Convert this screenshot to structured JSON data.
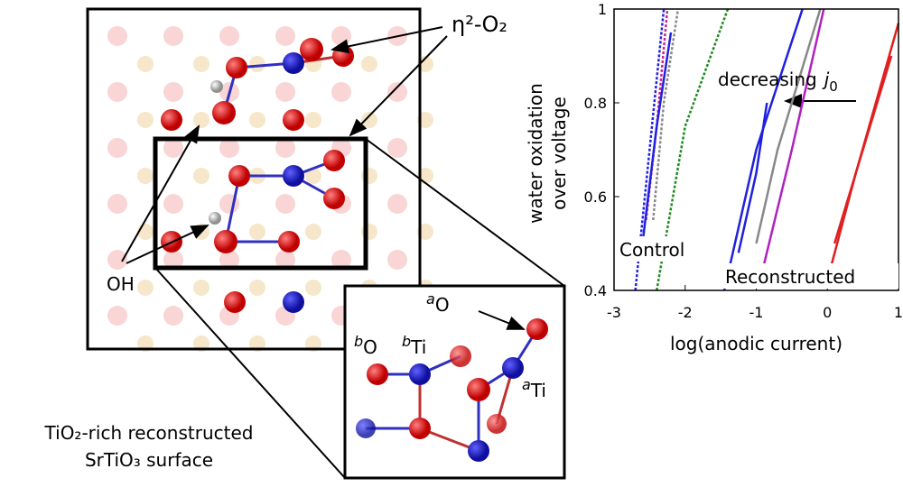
{
  "chart_data": {
    "type": "line",
    "xlabel": "log(anodic current)",
    "ylabel": [
      "water oxidation",
      "over voltage"
    ],
    "xlim": [
      -3,
      1
    ],
    "ylim": [
      0.4,
      1
    ],
    "xticks": [
      -3,
      -2,
      -1,
      0,
      1
    ],
    "yticks": [
      0.4,
      0.6,
      0.8,
      1
    ],
    "annotations": {
      "decreasing": {
        "text": "decreasing",
        "symbol": "j",
        "subscript": "0"
      },
      "control": "Control",
      "reconstructed": "Reconstructed"
    },
    "series": [
      {
        "color": "#2020e0",
        "dashed": true,
        "x": [
          -2.7,
          -2.5,
          -2.3
        ],
        "values": [
          0.4,
          0.7,
          1.0
        ]
      },
      {
        "color": "#d0208a",
        "dashed": true,
        "x": [
          -2.55,
          -2.4,
          -2.25
        ],
        "values": [
          0.55,
          0.75,
          1.0
        ]
      },
      {
        "color": "#888888",
        "dashed": true,
        "x": [
          -2.45,
          -2.3,
          -2.1
        ],
        "values": [
          0.55,
          0.8,
          1.0
        ]
      },
      {
        "color": "#2020e0",
        "dashed": false,
        "x": [
          -2.6,
          -2.4,
          -2.2
        ],
        "values": [
          0.5,
          0.75,
          0.95
        ]
      },
      {
        "color": "#208a20",
        "dashed": true,
        "x": [
          -2.4,
          -2.0,
          -1.4
        ],
        "values": [
          0.4,
          0.75,
          1.0
        ]
      },
      {
        "color": "#2020e0",
        "dashed": false,
        "x": [
          -1.45,
          -1.0,
          -0.35
        ],
        "values": [
          0.4,
          0.7,
          1.0
        ]
      },
      {
        "color": "#2020e0",
        "dashed": false,
        "x": [
          -1.25,
          -1.0,
          -0.85
        ],
        "values": [
          0.48,
          0.65,
          0.8
        ]
      },
      {
        "color": "#888888",
        "dashed": false,
        "x": [
          -1.0,
          -0.7,
          -0.4,
          -0.1
        ],
        "values": [
          0.5,
          0.7,
          0.85,
          1.0
        ]
      },
      {
        "color": "#b020c0",
        "dashed": false,
        "x": [
          -0.9,
          -0.5,
          -0.05
        ],
        "values": [
          0.45,
          0.7,
          1.0
        ]
      },
      {
        "color": "#e02020",
        "dashed": false,
        "x": [
          0.05,
          0.4,
          1.0
        ],
        "values": [
          0.45,
          0.65,
          0.97
        ]
      },
      {
        "color": "#e02020",
        "dashed": false,
        "x": [
          0.1,
          0.5,
          0.9
        ],
        "values": [
          0.5,
          0.7,
          0.9
        ]
      }
    ]
  },
  "diagram": {
    "labels": {
      "eta": "η²-O₂",
      "oh": "OH",
      "caption": [
        "TiO₂-rich reconstructed",
        "SrTiO₃ surface"
      ]
    },
    "inset_labels": {
      "aO": {
        "sup": "a",
        "base": "O"
      },
      "bO": {
        "sup": "b",
        "base": "O"
      },
      "bTi": {
        "sup": "b",
        "base": "Ti"
      },
      "aTi": {
        "sup": "a",
        "base": "Ti"
      }
    }
  }
}
